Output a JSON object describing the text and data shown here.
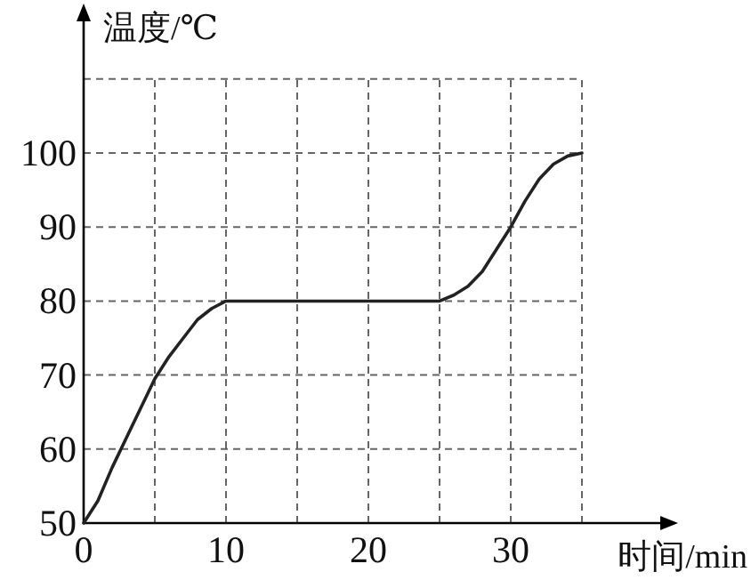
{
  "chart_data": {
    "type": "line",
    "xlabel": "时间/min",
    "ylabel": "温度/℃",
    "x": [
      0,
      1,
      2,
      3,
      4,
      5,
      6,
      7,
      8,
      9,
      10,
      15,
      20,
      25,
      26,
      27,
      28,
      29,
      30,
      31,
      32,
      33,
      34,
      35
    ],
    "series": [
      {
        "color": "#222222",
        "values": [
          50,
          53,
          57.5,
          61.5,
          65.5,
          69.5,
          72.5,
          75,
          77.5,
          79,
          80,
          80,
          80,
          80,
          80.8,
          82,
          84,
          87,
          90,
          93.5,
          96.5,
          98.5,
          99.6,
          100
        ]
      }
    ],
    "xlim": [
      0,
      41
    ],
    "ylim": [
      50,
      119
    ],
    "xticks": [
      0,
      {
        "value": 5,
        "label": null
      },
      10,
      {
        "value": 15,
        "label": null
      },
      20,
      {
        "value": 25,
        "label": null
      },
      30,
      {
        "value": 35,
        "label": null
      }
    ],
    "yticks": [
      50,
      60,
      70,
      80,
      90,
      100,
      {
        "value": 110,
        "label": null
      }
    ],
    "grid": true
  }
}
